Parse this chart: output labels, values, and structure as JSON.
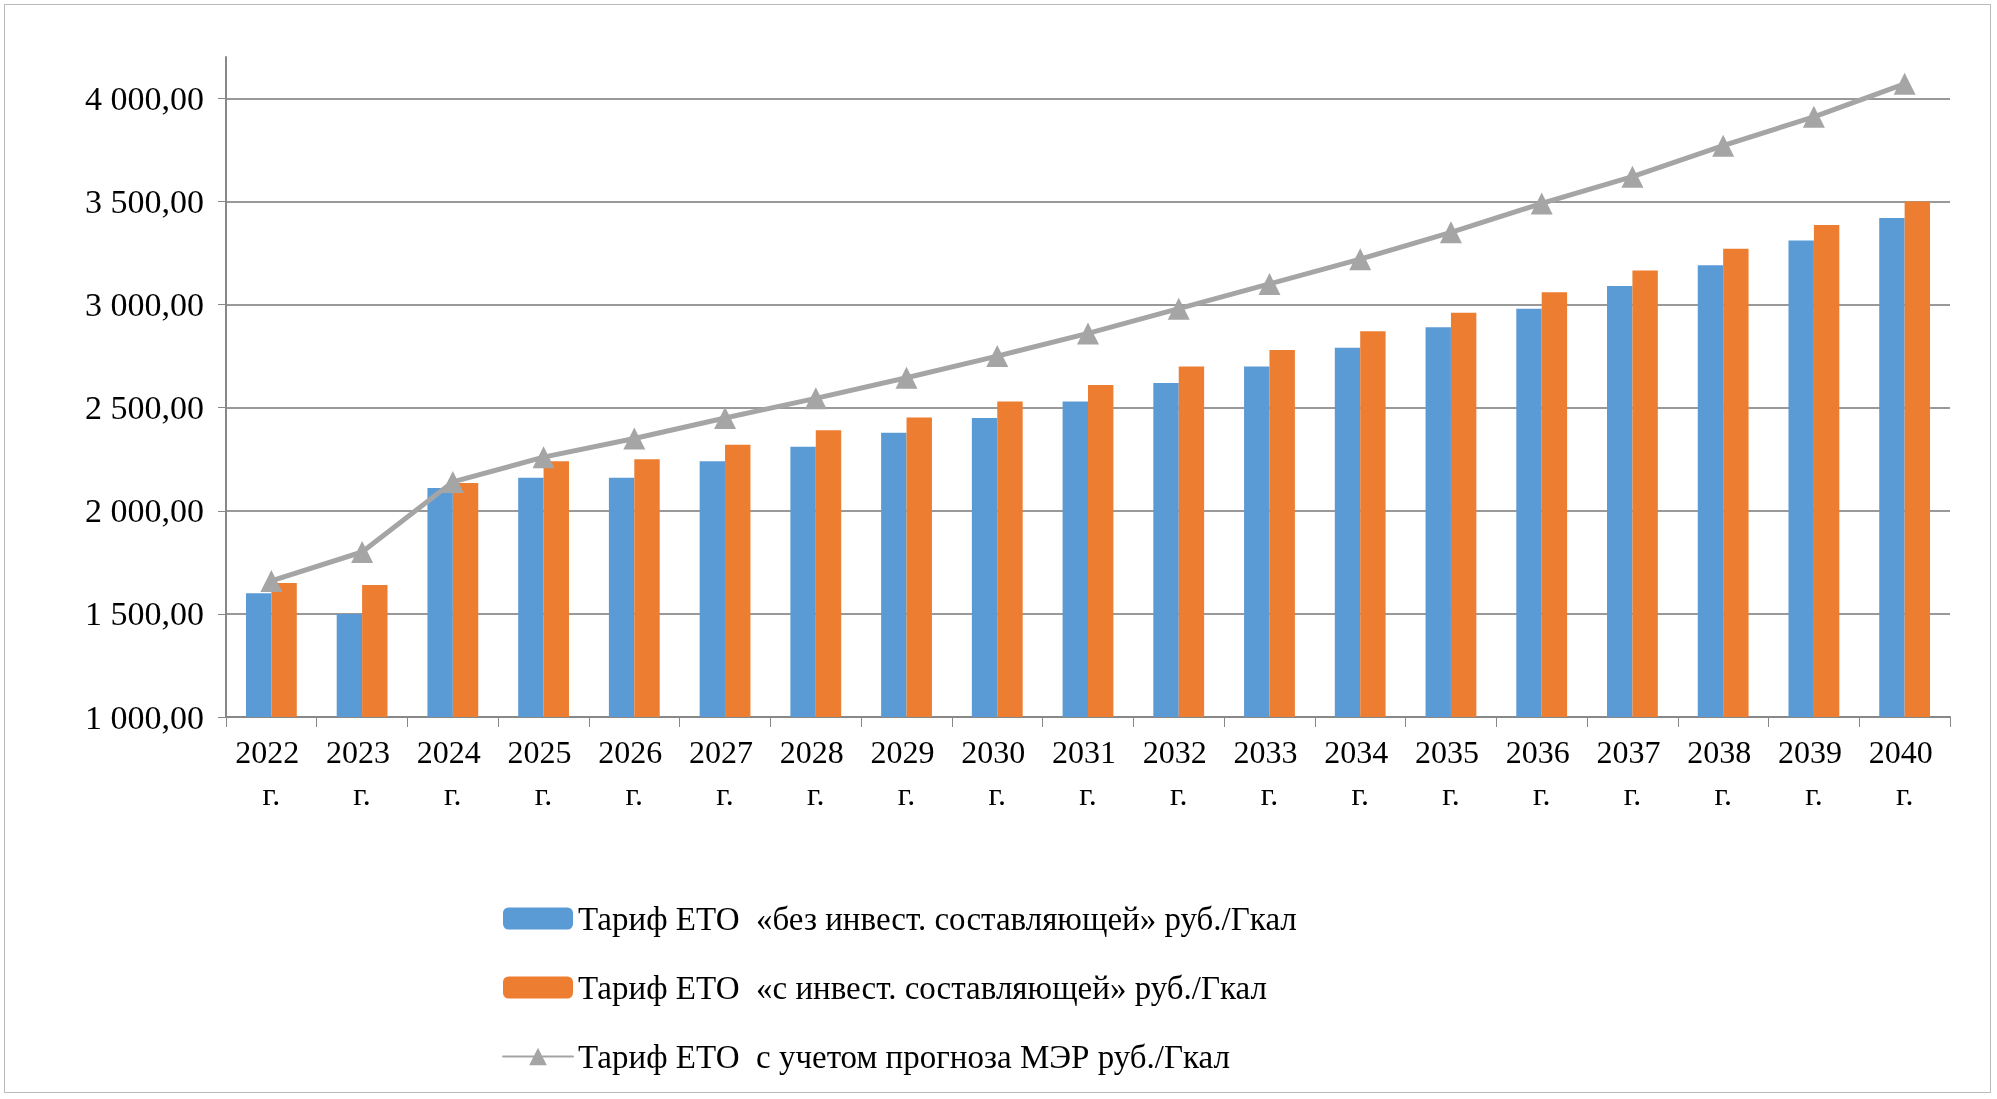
{
  "chart_data": {
    "type": "bar",
    "categories": [
      "2022 г.",
      "2023 г.",
      "2024 г.",
      "2025 г.",
      "2026 г.",
      "2027 г.",
      "2028 г.",
      "2029 г.",
      "2030 г.",
      "2031 г.",
      "2032 г.",
      "2033 г.",
      "2034 г.",
      "2035 г.",
      "2036 г.",
      "2037 г.",
      "2038 г.",
      "2039 г.",
      "2040 г."
    ],
    "series": [
      {
        "name": "Тариф ЕТО  «без инвест. составляющей» руб./Гкал",
        "color": "#5b9bd5",
        "values": [
          1600,
          1500,
          2110,
          2160,
          2160,
          2240,
          2310,
          2378,
          2450,
          2530,
          2620,
          2700,
          2790,
          2890,
          2980,
          3090,
          3190,
          3310,
          3420
        ]
      },
      {
        "name": "Тариф ЕТО  «с инвест. составляющей» руб./Гкал",
        "color": "#ed7d31",
        "values": [
          1650,
          1640,
          2135,
          2240,
          2250,
          2320,
          2390,
          2452,
          2530,
          2610,
          2700,
          2780,
          2870,
          2960,
          3060,
          3165,
          3270,
          3385,
          3500
        ]
      },
      {
        "name": "Тариф ЕТО  с учетом прогноза МЭР руб./Гкал",
        "type": "line",
        "color": "#a5a5a5",
        "marker": "triangle",
        "values": [
          1660,
          1800,
          2140,
          2260,
          2350,
          2450,
          2545,
          2645,
          2750,
          2860,
          2980,
          3100,
          3220,
          3350,
          3490,
          3620,
          3770,
          3910,
          4070
        ]
      }
    ],
    "ylim": [
      1000,
      4200
    ],
    "yticks": [
      {
        "value": 1000,
        "label": "1 000,00"
      },
      {
        "value": 1500,
        "label": "1 500,00"
      },
      {
        "value": 2000,
        "label": "2 000,00"
      },
      {
        "value": 2500,
        "label": "2 500,00"
      },
      {
        "value": 3000,
        "label": "3 000,00"
      },
      {
        "value": 3500,
        "label": "3 500,00"
      },
      {
        "value": 4000,
        "label": "4 000,00"
      }
    ],
    "grid": "y",
    "legend": "bottom"
  }
}
